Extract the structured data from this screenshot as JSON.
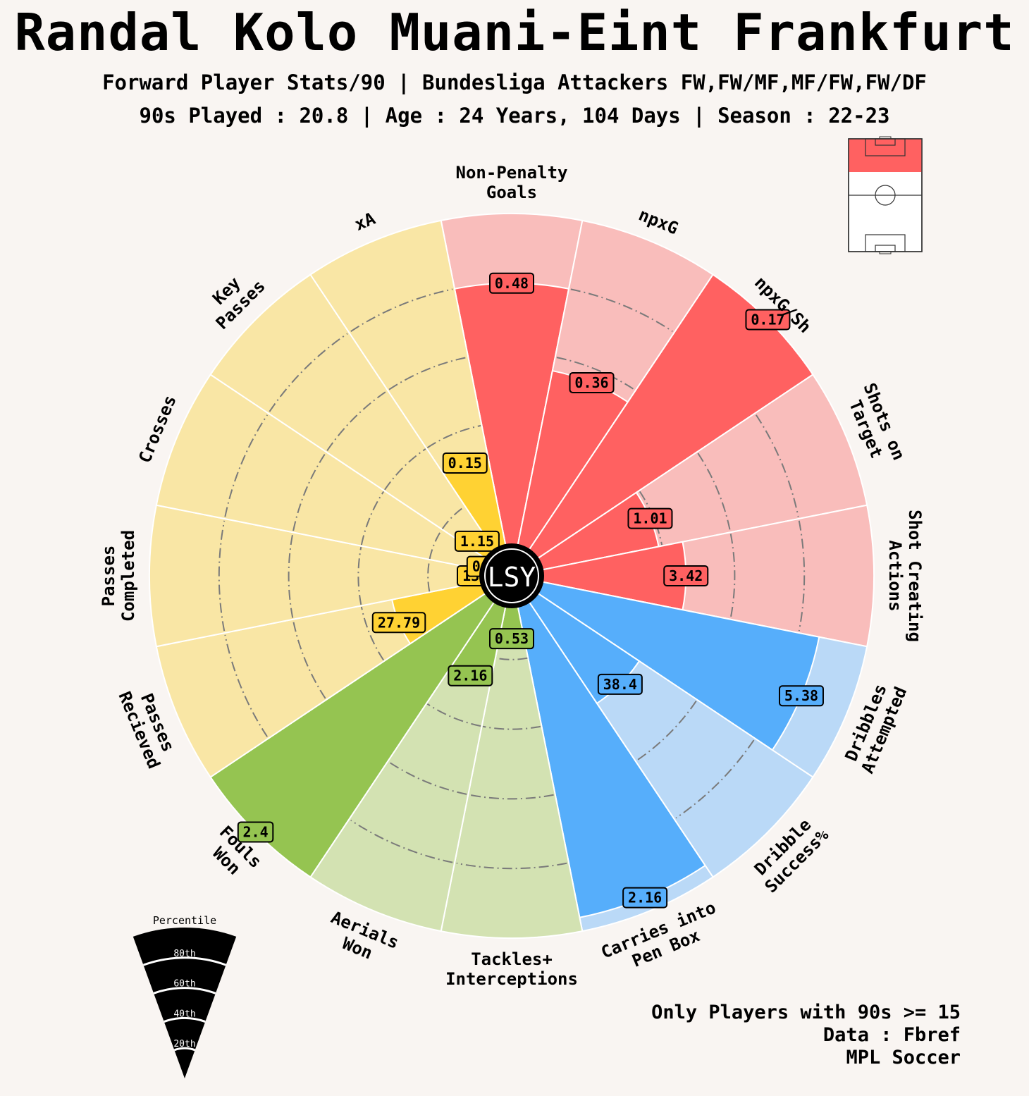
{
  "title": "Randal Kolo Muani-Eint Frankfurt",
  "subtitle_1": "Forward Player Stats/90 | Bundesliga Attackers FW,FW/MF,MF/FW,FW/DF",
  "subtitle_2": "90s Played : 20.8 | Age : 24 Years, 104 Days | Season : 22-23",
  "footer": {
    "line_1": "Only Players with 90s >= 15",
    "line_2": "Data : Fbref",
    "line_3": "MPL Soccer"
  },
  "logo_text": "LSY",
  "legend": {
    "title": "Percentile",
    "levels": [
      "80th",
      "60th",
      "40th",
      "20th"
    ]
  },
  "colors": {
    "background": "#f9f5f2",
    "attacking": "#ff6161",
    "attacking_light": "#f9bdbb",
    "possession": "#56aefb",
    "possession_light": "#bad9f7",
    "defending": "#95c451",
    "defending_light": "#d3e2b2",
    "passing": "#ffd233",
    "passing_light": "#f9e6a5"
  },
  "pitch_icon": "football-pitch-icon",
  "chart_data": {
    "type": "radial_bar",
    "scale": "percentile",
    "rlim": [
      0,
      100
    ],
    "rings": [
      20,
      40,
      60,
      80
    ],
    "categories": [
      {
        "label": "Non-Penalty\nGoals",
        "value_label": "0.48",
        "percentile": 80,
        "group": "attacking"
      },
      {
        "label": "npxG",
        "value_label": "0.36",
        "percentile": 56,
        "group": "attacking"
      },
      {
        "label": "npxG/Sh",
        "value_label": "0.17",
        "percentile": 100,
        "group": "attacking"
      },
      {
        "label": "Shots on\nTarget",
        "value_label": "1.01",
        "percentile": 39,
        "group": "attacking"
      },
      {
        "label": "Shot Creating\nActions",
        "value_label": "3.42",
        "percentile": 46,
        "group": "attacking"
      },
      {
        "label": "Dribbles\nAttempted",
        "value_label": "5.38",
        "percentile": 86,
        "group": "possession"
      },
      {
        "label": "Dribble\nSuccess%",
        "value_label": "38.4",
        "percentile": 40,
        "group": "possession"
      },
      {
        "label": "Carries into\nPen Box",
        "value_label": "2.16",
        "percentile": 96,
        "group": "possession"
      },
      {
        "label": "Tackles+\nInterceptions",
        "value_label": "0.53",
        "percentile": 14,
        "group": "defending"
      },
      {
        "label": "Aerials\nWon",
        "value_label": "2.16",
        "percentile": 27,
        "group": "defending"
      },
      {
        "label": "Fouls\nWon",
        "value_label": "2.4",
        "percentile": 100,
        "group": "defending"
      },
      {
        "label": "Passes\nRecieved",
        "value_label": "27.79",
        "percentile": 31,
        "group": "passing"
      },
      {
        "label": "Passes\nCompleted",
        "value_label": "13.85",
        "percentile": 4,
        "group": "passing"
      },
      {
        "label": "Crosses",
        "value_label": "0.82",
        "percentile": 3,
        "group": "passing"
      },
      {
        "label": "Key\nPasses",
        "value_label": "1.15",
        "percentile": 10,
        "group": "passing"
      },
      {
        "label": "xA",
        "value_label": "0.15",
        "percentile": 31,
        "group": "passing"
      }
    ]
  }
}
